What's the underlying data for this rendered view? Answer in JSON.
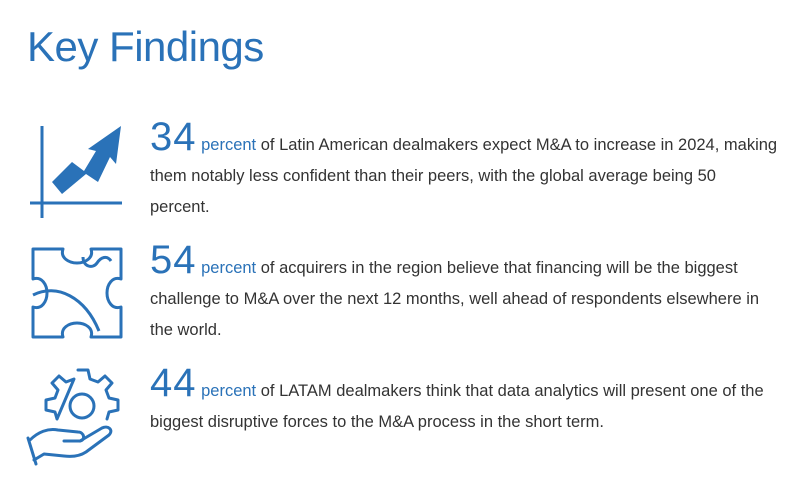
{
  "page": {
    "title": "Key Findings"
  },
  "findings": [
    {
      "icon": "growth-chart-icon",
      "number": "34",
      "unit": "percent",
      "text": "of Latin American dealmakers expect M&A to increase in 2024, making them notably less confident than their peers, with the global average being 50 percent."
    },
    {
      "icon": "puzzle-piece-icon",
      "number": "54",
      "unit": "percent",
      "text": "of acquirers in the region believe that financing will be the biggest challenge to M&A over the next 12 months, well ahead of respondents elsewhere in the world."
    },
    {
      "icon": "gear-in-hand-icon",
      "number": "44",
      "unit": "percent",
      "text": "of LATAM dealmakers think that data analytics will present one of the biggest disruptive forces to the M&A process in the short term."
    }
  ],
  "colors": {
    "accent": "#2a72b8",
    "body_text": "#333333"
  }
}
